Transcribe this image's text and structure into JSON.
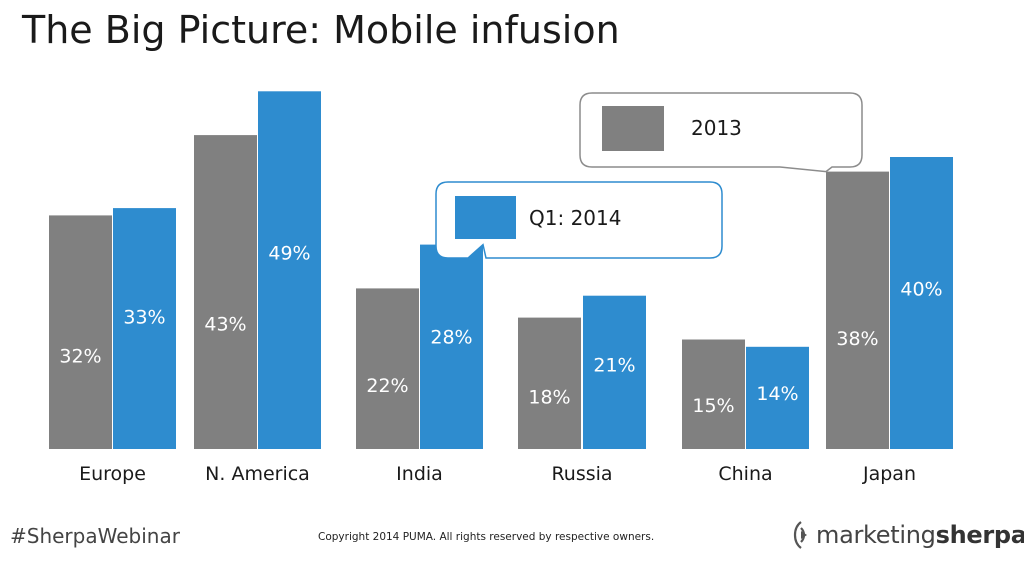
{
  "title": "The Big Picture: Mobile infusion",
  "footer": {
    "hashtag": "#SherpaWebinar",
    "copyright": "Copyright 2014 PUMA. All rights reserved by respective owners.",
    "logo_part1": "marketing",
    "logo_part2": "sherpa"
  },
  "colors": {
    "series_2013": "#808080",
    "series_q1_2014": "#2e8ccf",
    "callout_2013_border": "#8c8c8c",
    "callout_q1_border": "#2e8ccf"
  },
  "chart_data": {
    "type": "bar",
    "title": "The Big Picture: Mobile infusion",
    "xlabel": "",
    "ylabel": "",
    "ylim": [
      0,
      50
    ],
    "grid": false,
    "categories": [
      "Europe",
      "N. America",
      "India",
      "Russia",
      "China",
      "Japan"
    ],
    "series": [
      {
        "name": "2013",
        "values": [
          32,
          43,
          22,
          18,
          15,
          38
        ],
        "labels": [
          "32%",
          "43%",
          "22%",
          "18%",
          "15%",
          "38%"
        ]
      },
      {
        "name": "Q1: 2014",
        "values": [
          33,
          49,
          28,
          21,
          14,
          40
        ],
        "labels": [
          "33%",
          "49%",
          "28%",
          "21%",
          "14%",
          "40%"
        ]
      }
    ],
    "legend": "callouts",
    "legend_labels": {
      "series_2013": "2013",
      "series_q1": "Q1: 2014"
    }
  }
}
